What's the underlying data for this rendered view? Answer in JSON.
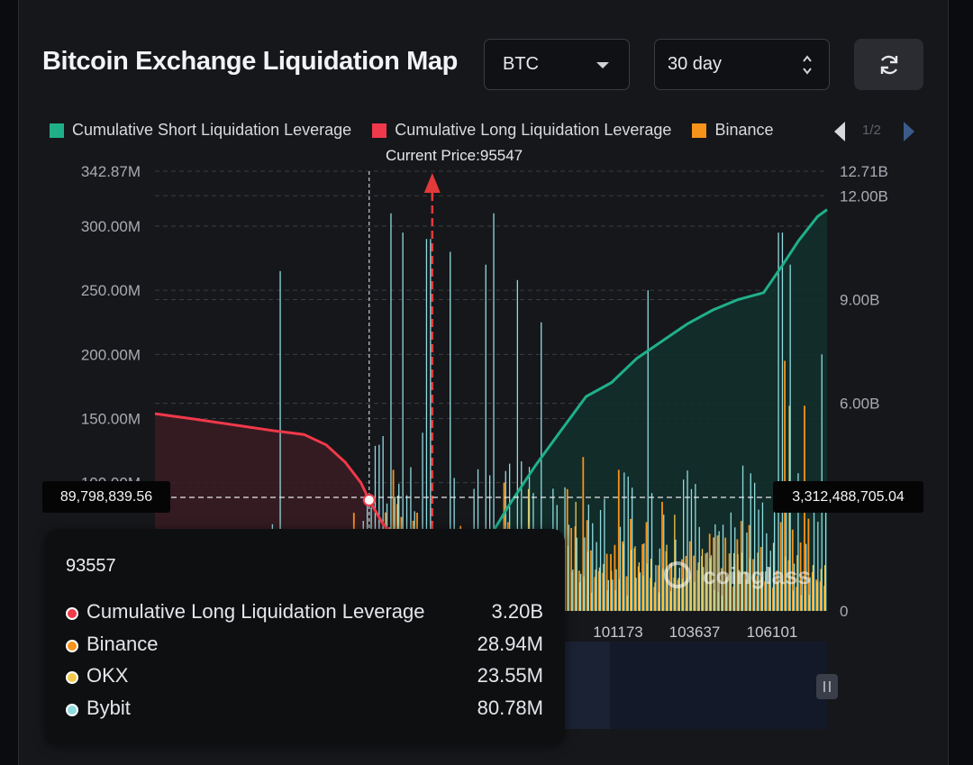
{
  "title": "Bitcoin Exchange Liquidation Map",
  "controls": {
    "coin": "BTC",
    "range": "30 day"
  },
  "legend": {
    "items": [
      {
        "label": "Cumulative Short Liquidation Leverage",
        "color": "#1fb08a"
      },
      {
        "label": "Cumulative Long Liquidation Leverage",
        "color": "#f0394a"
      },
      {
        "label": "Binance",
        "color": "#f7931a"
      }
    ],
    "page": "1/2"
  },
  "current_price_label": "Current Price:95547",
  "ref_left_value": "89,798,839.56",
  "ref_right_value": "3,312,488,705.04",
  "watermark": "coinglass",
  "tooltip": {
    "title": "93557",
    "rows": [
      {
        "label": "Cumulative Long Liquidation Leverage",
        "value": "3.20B",
        "color": "#f0394a"
      },
      {
        "label": "Binance",
        "value": "28.94M",
        "color": "#f7931a"
      },
      {
        "label": "OKX",
        "value": "23.55M",
        "color": "#f2c94c"
      },
      {
        "label": "Bybit",
        "value": "80.78M",
        "color": "#8fdbe0"
      }
    ]
  },
  "chart_data": {
    "type": "bar",
    "title": "",
    "y_left": {
      "min": 0,
      "max": 342.87,
      "unit": "M",
      "ticks": [
        "342.87M",
        "300.00M",
        "250.00M",
        "200.00M",
        "150.00M",
        "100.00M"
      ]
    },
    "y_right": {
      "min": 0,
      "max": 12.71,
      "unit": "B",
      "ticks": [
        "12.71B",
        "12.00B",
        "9.00B",
        "6.00B",
        "0"
      ]
    },
    "x_tick_labels": [
      "101173",
      "103637",
      "106101"
    ],
    "current_price": 95547,
    "hover_price": 93557,
    "series": [
      {
        "name": "Cumulative Long Liquidation Leverage",
        "axis": "right",
        "color": "#f0394a",
        "points": [
          [
            86800,
            5.7
          ],
          [
            88000,
            5.55
          ],
          [
            89500,
            5.35
          ],
          [
            90600,
            5.2
          ],
          [
            91500,
            5.1
          ],
          [
            92200,
            4.8
          ],
          [
            92800,
            4.3
          ],
          [
            93300,
            3.7
          ],
          [
            93557,
            3.2
          ],
          [
            94000,
            2.5
          ],
          [
            94700,
            1.8
          ],
          [
            95000,
            1.4
          ]
        ]
      },
      {
        "name": "Cumulative Short Liquidation Leverage",
        "axis": "right",
        "color": "#1fb08a",
        "points": [
          [
            96400,
            0.6
          ],
          [
            97200,
            1.9
          ],
          [
            98000,
            3.1
          ],
          [
            98800,
            4.2
          ],
          [
            99600,
            5.2
          ],
          [
            100400,
            6.2
          ],
          [
            101200,
            6.6
          ],
          [
            102000,
            7.3
          ],
          [
            102800,
            7.8
          ],
          [
            103600,
            8.3
          ],
          [
            104400,
            8.7
          ],
          [
            105200,
            9.0
          ],
          [
            106000,
            9.2
          ],
          [
            106600,
            10.0
          ],
          [
            107100,
            10.7
          ],
          [
            107700,
            11.4
          ],
          [
            108000,
            11.6
          ]
        ]
      },
      {
        "name": "Binance",
        "color": "#f7931a",
        "axis": "left",
        "highlights": [
          [
            93557,
            28.94
          ],
          [
            94300,
            110
          ],
          [
            97800,
            100
          ],
          [
            99800,
            95
          ],
          [
            100300,
            120
          ],
          [
            101500,
            110
          ],
          [
            102800,
            85
          ],
          [
            106700,
            195
          ],
          [
            107300,
            160
          ]
        ]
      },
      {
        "name": "OKX",
        "color": "#f2c94c",
        "axis": "left",
        "highlights": [
          [
            93557,
            23.55
          ],
          [
            94500,
            90
          ],
          [
            98600,
            95
          ],
          [
            100100,
            85
          ],
          [
            103200,
            75
          ],
          [
            106800,
            160
          ]
        ]
      },
      {
        "name": "Bybit",
        "color": "#8fdbe0",
        "axis": "left",
        "highlights": [
          [
            90700,
            265
          ],
          [
            93557,
            80.78
          ],
          [
            94200,
            310
          ],
          [
            94600,
            295
          ],
          [
            95400,
            290
          ],
          [
            96100,
            280
          ],
          [
            97500,
            310
          ],
          [
            97200,
            270
          ],
          [
            98200,
            258
          ],
          [
            99000,
            225
          ],
          [
            102300,
            250
          ],
          [
            106500,
            295
          ],
          [
            106800,
            270
          ],
          [
            107800,
            200
          ]
        ]
      }
    ]
  }
}
